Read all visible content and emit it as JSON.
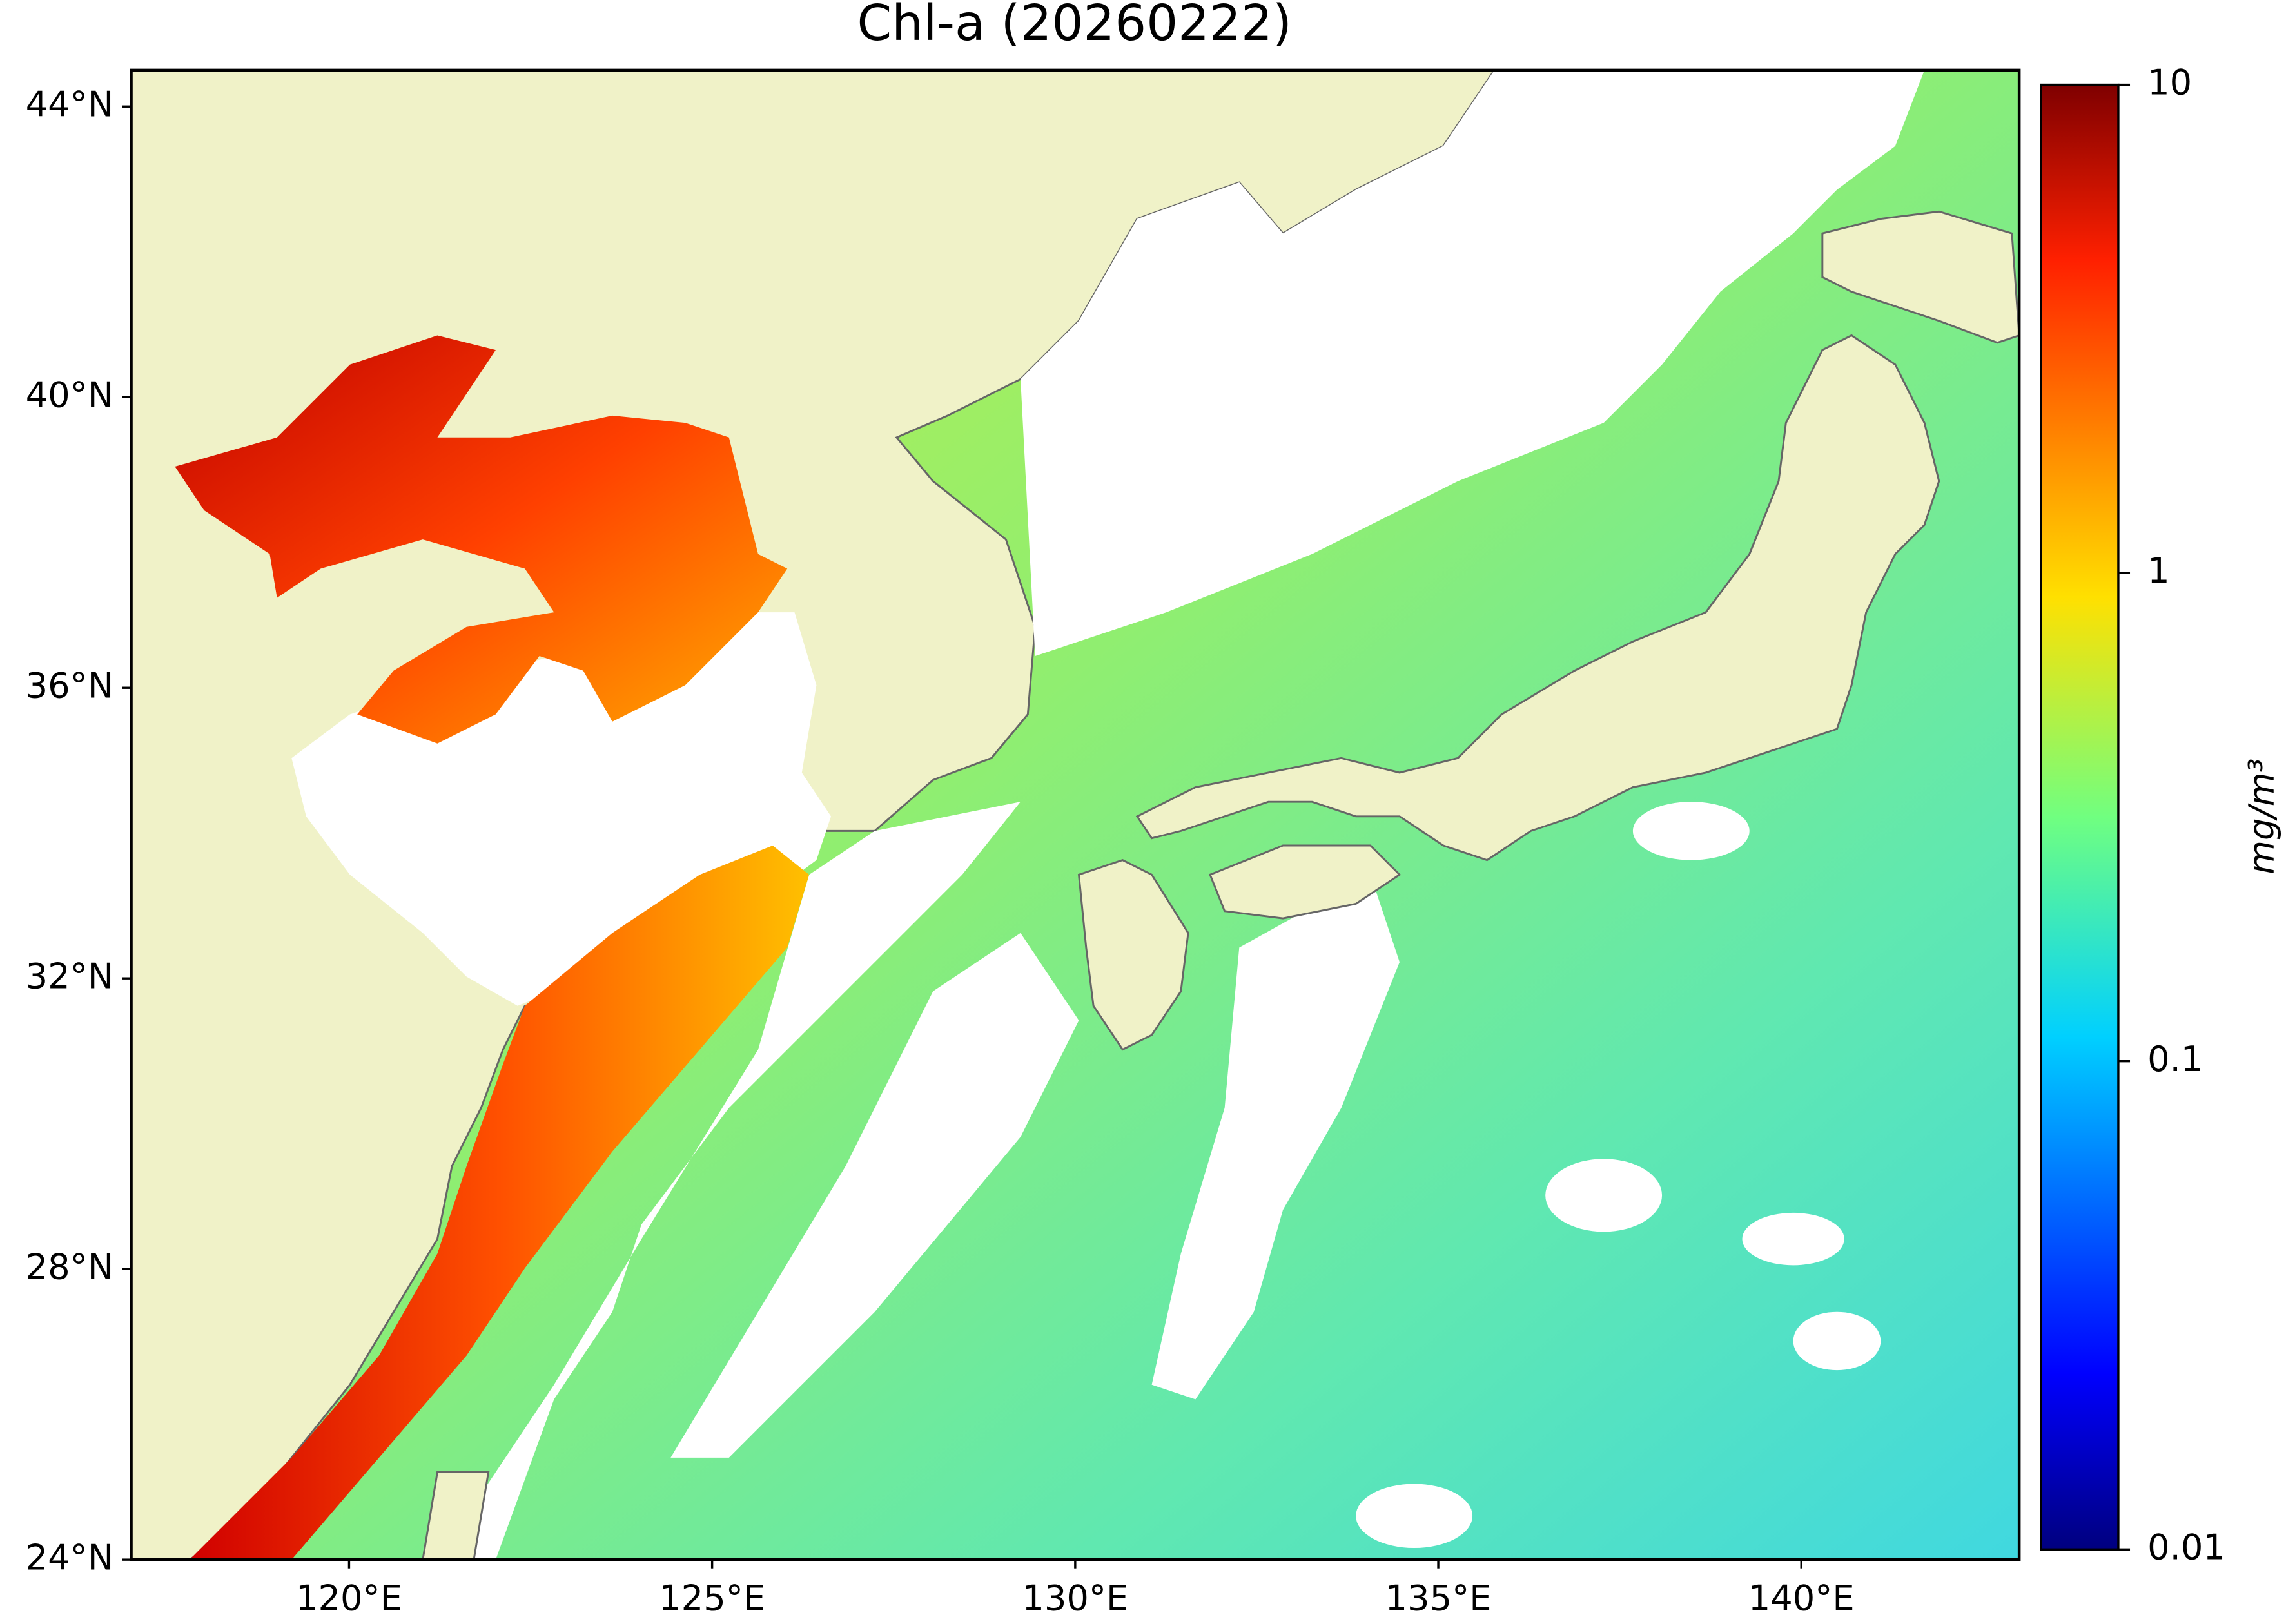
{
  "title": "Chl-a (20260222)",
  "map": {
    "xlim": [
      117,
      143
    ],
    "ylim": [
      24,
      44.5
    ],
    "xticks": [
      {
        "value": 120,
        "label": "120°E"
      },
      {
        "value": 125,
        "label": "125°E"
      },
      {
        "value": 130,
        "label": "130°E"
      },
      {
        "value": 135,
        "label": "135°E"
      },
      {
        "value": 140,
        "label": "140°E"
      }
    ],
    "yticks": [
      {
        "value": 24,
        "label": "24°N"
      },
      {
        "value": 28,
        "label": "28°N"
      },
      {
        "value": 32,
        "label": "32°N"
      },
      {
        "value": 36,
        "label": "36°N"
      },
      {
        "value": 40,
        "label": "40°N"
      },
      {
        "value": 44,
        "label": "44°N"
      }
    ]
  },
  "colorbar": {
    "lim": [
      0.01,
      10
    ],
    "scale": "log",
    "ticks": [
      0.01,
      0.1,
      1,
      10
    ],
    "label": "mg/m³"
  }
}
